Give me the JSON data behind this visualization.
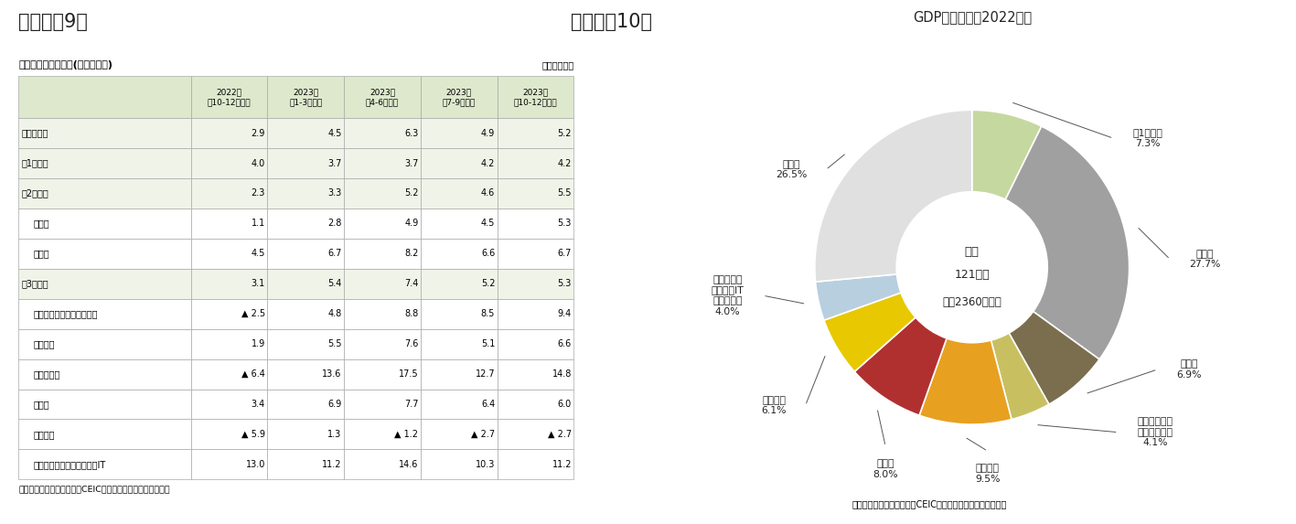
{
  "fig9_title": "（図表－9）",
  "fig10_title": "（図表－10）",
  "table_title": "産業別の実質成長率(前年同期比)",
  "table_unit": "（単位：％）",
  "col_headers": [
    "",
    "2022年\n（10-12月期）",
    "2023年\n（1-3月期）",
    "2023年\n（4-6月期）",
    "2023年\n（7-9月期）",
    "2023年\n（10-12月期）"
  ],
  "rows": [
    {
      "label": "国内総生産",
      "indent": 0,
      "values": [
        "2.9",
        "4.5",
        "6.3",
        "4.9",
        "5.2"
      ]
    },
    {
      "label": "第1次産業",
      "indent": 0,
      "values": [
        "4.0",
        "3.7",
        "3.7",
        "4.2",
        "4.2"
      ]
    },
    {
      "label": "第2次産業",
      "indent": 0,
      "values": [
        "2.3",
        "3.3",
        "5.2",
        "4.6",
        "5.5"
      ]
    },
    {
      "label": "製造業",
      "indent": 1,
      "values": [
        "1.1",
        "2.8",
        "4.9",
        "4.5",
        "5.3"
      ]
    },
    {
      "label": "建築業",
      "indent": 1,
      "values": [
        "4.5",
        "6.7",
        "8.2",
        "6.6",
        "6.7"
      ]
    },
    {
      "label": "第3次産業",
      "indent": 0,
      "values": [
        "3.1",
        "5.4",
        "7.4",
        "5.2",
        "5.3"
      ]
    },
    {
      "label": "交通・運輸・倉庫・郵便業",
      "indent": 1,
      "values": [
        "▲ 2.5",
        "4.8",
        "8.8",
        "8.5",
        "9.4"
      ]
    },
    {
      "label": "卸小売業",
      "indent": 1,
      "values": [
        "1.9",
        "5.5",
        "7.6",
        "5.1",
        "6.6"
      ]
    },
    {
      "label": "宿泊飲食業",
      "indent": 1,
      "values": [
        "▲ 6.4",
        "13.6",
        "17.5",
        "12.7",
        "14.8"
      ]
    },
    {
      "label": "金融業",
      "indent": 1,
      "values": [
        "3.4",
        "6.9",
        "7.7",
        "6.4",
        "6.0"
      ]
    },
    {
      "label": "不動産業",
      "indent": 1,
      "values": [
        "▲ 5.9",
        "1.3",
        "▲ 1.2",
        "▲ 2.7",
        "▲ 2.7"
      ]
    },
    {
      "label": "情報通信・ソフトウェア・IT",
      "indent": 1,
      "values": [
        "13.0",
        "11.2",
        "14.6",
        "10.3",
        "11.2"
      ]
    }
  ],
  "source_text": "（資料）中国国家統計局、CEICよりニッセイ基礎研究所作成",
  "pie_title": "GDP産業構成（2022年）",
  "pie_values": [
    7.3,
    27.7,
    6.9,
    4.1,
    9.5,
    8.0,
    6.1,
    4.0,
    26.5
  ],
  "pie_colors": [
    "#c5d8a0",
    "#a0a0a0",
    "#7a6e4e",
    "#c8c060",
    "#e8a020",
    "#b03030",
    "#e8c800",
    "#b8cfe0",
    "#e0e0e0"
  ],
  "pie_segment_labels": [
    "第1次産業\n7.3%",
    "製造業\n27.7%",
    "建築業\n6.9%",
    "交通・運輸・\n倉庫・郵便業\n4.1%",
    "卸小売業\n9.5%",
    "金融業\n8.0%",
    "不動産業\n6.1%",
    "情報通信・\nソフト・IT\nサービス業\n4.0%",
    "その他\n26.5%"
  ],
  "pie_center_line1": "合計",
  "pie_center_line2": "121兆元",
  "pie_center_line3": "（約2360兆円）",
  "pie_source": "（資料）中国国家統計局、CEICよりニッセイ基礎研究所作成",
  "bg_color": "#ffffff",
  "table_header_bg": "#dde8cc",
  "table_sub_bg": "#f0f4e8",
  "table_main_bg": "#f0f4e8",
  "table_white_bg": "#ffffff"
}
